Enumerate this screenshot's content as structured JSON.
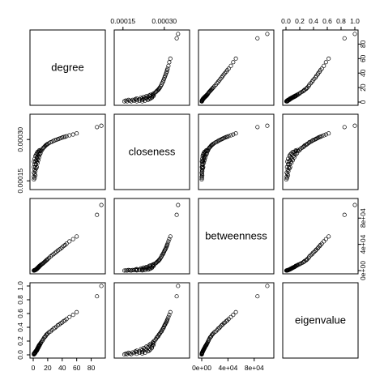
{
  "chart_data": {
    "type": "scatter",
    "title": "",
    "variables": [
      "degree",
      "closeness",
      "betweenness",
      "eigenvalue"
    ],
    "ranges": {
      "degree": [
        0,
        95
      ],
      "closeness": [
        0.00013,
        0.00038
      ],
      "betweenness": [
        0,
        105000
      ],
      "eigenvalue": [
        0,
        1
      ]
    },
    "axes": {
      "degree": {
        "ticks": [
          0,
          20,
          40,
          60,
          80
        ],
        "tick_labels": [
          "0",
          "20",
          "40",
          "60",
          "80"
        ]
      },
      "closeness": {
        "ticks": [
          0.00015,
          0.0003
        ],
        "tick_labels": [
          "0.00015",
          "0.00030"
        ]
      },
      "betweenness": {
        "ticks": [
          0,
          40000,
          80000
        ],
        "tick_labels": [
          "0e+00",
          "4e+04",
          "8e+04"
        ]
      },
      "eigenvalue": {
        "ticks": [
          0,
          0.2,
          0.4,
          0.6,
          0.8,
          1.0
        ],
        "tick_labels": [
          "0.0",
          "0.2",
          "0.4",
          "0.6",
          "0.8",
          "1.0"
        ]
      }
    },
    "tick_sides": {
      "top": [
        "closeness",
        "eigenvalue"
      ],
      "bottom": [
        "degree",
        "betweenness"
      ],
      "left": [
        "closeness",
        "eigenvalue"
      ],
      "right": [
        "degree",
        "betweenness"
      ]
    },
    "columns": [
      "degree",
      "closeness",
      "betweenness",
      "eigenvalue"
    ],
    "points": [
      [
        1,
        0.000155,
        0,
        0.005
      ],
      [
        1,
        0.000165,
        50,
        0.01
      ],
      [
        1,
        0.00018,
        100,
        0.01
      ],
      [
        1,
        0.0002,
        150,
        0.015
      ],
      [
        1,
        0.00022,
        200,
        0.02
      ],
      [
        2,
        0.00016,
        300,
        0.015
      ],
      [
        2,
        0.000175,
        400,
        0.02
      ],
      [
        2,
        0.00019,
        500,
        0.025
      ],
      [
        2,
        0.00021,
        600,
        0.03
      ],
      [
        2,
        0.00023,
        700,
        0.03
      ],
      [
        3,
        0.00017,
        800,
        0.03
      ],
      [
        3,
        0.000185,
        900,
        0.035
      ],
      [
        3,
        0.0002,
        1000,
        0.04
      ],
      [
        3,
        0.00022,
        1200,
        0.04
      ],
      [
        3,
        0.00024,
        1400,
        0.05
      ],
      [
        4,
        0.000195,
        1500,
        0.05
      ],
      [
        4,
        0.00021,
        1700,
        0.05
      ],
      [
        4,
        0.000225,
        1900,
        0.06
      ],
      [
        4,
        0.000245,
        2100,
        0.06
      ],
      [
        5,
        0.0002,
        2200,
        0.06
      ],
      [
        5,
        0.00022,
        2500,
        0.07
      ],
      [
        5,
        0.000235,
        2800,
        0.07
      ],
      [
        5,
        0.00025,
        3000,
        0.08
      ],
      [
        6,
        0.000215,
        3300,
        0.08
      ],
      [
        6,
        0.00023,
        3600,
        0.09
      ],
      [
        6,
        0.000245,
        3900,
        0.09
      ],
      [
        6,
        0.000255,
        4200,
        0.1
      ],
      [
        7,
        0.000225,
        4500,
        0.1
      ],
      [
        7,
        0.00024,
        4800,
        0.11
      ],
      [
        7,
        0.000255,
        5200,
        0.12
      ],
      [
        8,
        0.000235,
        5500,
        0.12
      ],
      [
        8,
        0.00025,
        6000,
        0.13
      ],
      [
        8,
        0.00026,
        6500,
        0.14
      ],
      [
        9,
        0.000245,
        7000,
        0.14
      ],
      [
        9,
        0.000258,
        7400,
        0.15
      ],
      [
        10,
        0.00025,
        7800,
        0.16
      ],
      [
        10,
        0.000262,
        8400,
        0.17
      ],
      [
        11,
        0.000258,
        9000,
        0.18
      ],
      [
        12,
        0.000262,
        9800,
        0.2
      ],
      [
        13,
        0.000266,
        10500,
        0.21
      ],
      [
        14,
        0.00027,
        11500,
        0.23
      ],
      [
        15,
        0.000272,
        12500,
        0.25
      ],
      [
        16,
        0.000275,
        13500,
        0.26
      ],
      [
        17,
        0.000278,
        14500,
        0.27
      ],
      [
        18,
        0.00028,
        15500,
        0.29
      ],
      [
        19,
        0.000282,
        16500,
        0.3
      ],
      [
        20,
        0.000284,
        17500,
        0.31
      ],
      [
        22,
        0.000287,
        19500,
        0.33
      ],
      [
        24,
        0.00029,
        21500,
        0.34
      ],
      [
        26,
        0.000292,
        23500,
        0.36
      ],
      [
        28,
        0.000295,
        25000,
        0.38
      ],
      [
        30,
        0.000297,
        27000,
        0.39
      ],
      [
        32,
        0.000299,
        28500,
        0.41
      ],
      [
        34,
        0.000301,
        30500,
        0.43
      ],
      [
        36,
        0.000303,
        32000,
        0.44
      ],
      [
        38,
        0.000305,
        33500,
        0.46
      ],
      [
        40,
        0.000307,
        35500,
        0.47
      ],
      [
        42,
        0.000309,
        37500,
        0.49
      ],
      [
        44,
        0.00031,
        39000,
        0.5
      ],
      [
        46,
        0.000312,
        41000,
        0.52
      ],
      [
        50,
        0.000315,
        44500,
        0.55
      ],
      [
        55,
        0.000318,
        48000,
        0.58
      ],
      [
        60,
        0.000322,
        52000,
        0.62
      ],
      [
        88,
        0.000345,
        85000,
        0.85
      ],
      [
        94,
        0.00035,
        100000,
        1.0
      ]
    ]
  }
}
